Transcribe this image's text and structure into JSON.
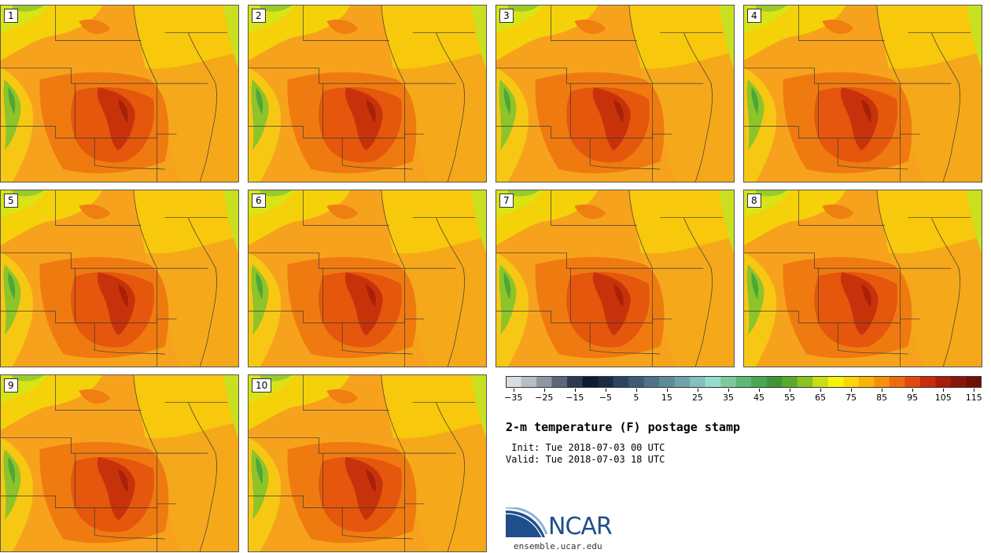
{
  "stamps": [
    {
      "label": "1"
    },
    {
      "label": "2"
    },
    {
      "label": "3"
    },
    {
      "label": "4"
    },
    {
      "label": "5"
    },
    {
      "label": "6"
    },
    {
      "label": "7"
    },
    {
      "label": "8"
    },
    {
      "label": "9"
    },
    {
      "label": "10"
    }
  ],
  "colorbar": {
    "colors": [
      "#d8dde2",
      "#b8bec6",
      "#8e96a4",
      "#5d6678",
      "#2f3a52",
      "#0f1a33",
      "#1c2a44",
      "#2b4560",
      "#3e5a75",
      "#4f7288",
      "#5f8a99",
      "#6fa3aa",
      "#84c0bd",
      "#94dccd",
      "#7ccaa0",
      "#60b877",
      "#4aa652",
      "#3d963a",
      "#5aaa2a",
      "#8cc41f",
      "#c6df18",
      "#f4f30c",
      "#f9d50a",
      "#f9b309",
      "#f7900a",
      "#f06b0b",
      "#e24a0c",
      "#c62d0b",
      "#a81c0a",
      "#8a150a",
      "#6e1008"
    ],
    "ticks": [
      "-35",
      "-25",
      "-15",
      "-5",
      "5",
      "15",
      "25",
      "35",
      "45",
      "55",
      "65",
      "75",
      "85",
      "95",
      "105",
      "115"
    ],
    "range": [
      -37.5,
      117.5
    ]
  },
  "title": "2-m temperature (F) postage stamp",
  "init": " Init: Tue 2018-07-03 00 UTC",
  "valid": "Valid: Tue 2018-07-03 18 UTC",
  "logo": {
    "text": "NCAR",
    "url": "ensemble.ucar.edu"
  }
}
